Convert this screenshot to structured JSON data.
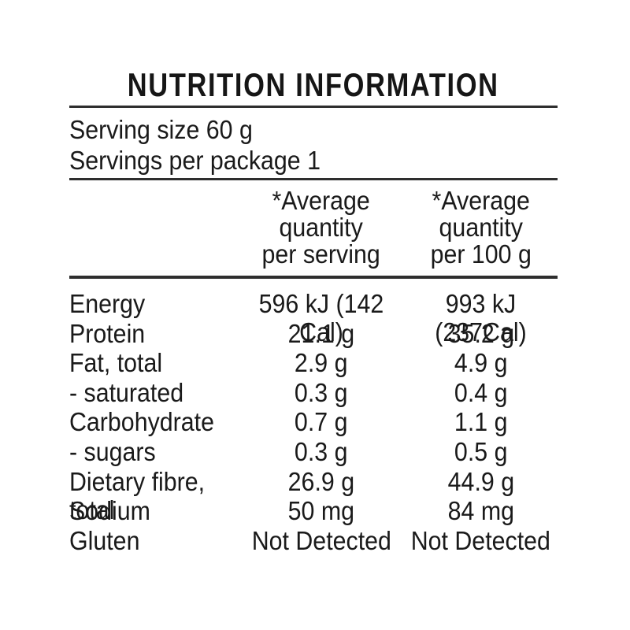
{
  "colors": {
    "background": "#ffffff",
    "text": "#1a1a1a",
    "rule": "#2e2e2e"
  },
  "title": "NUTRITION INFORMATION",
  "serving_info": {
    "serving_size": "Serving size 60 g",
    "servings_per_package": "Servings per package 1"
  },
  "columns": {
    "per_serving": "*Average\nquantity\nper serving",
    "per_100g": "*Average\nquantity\nper 100 g"
  },
  "table": {
    "rows": [
      {
        "label": "Energy",
        "per_serving": "596 kJ (142 Cal)",
        "per_100g": "993 kJ (237Cal)"
      },
      {
        "label": "Protein",
        "per_serving": "21.1 g",
        "per_100g": "35.2 g"
      },
      {
        "label": "Fat, total",
        "per_serving": "2.9 g",
        "per_100g": "4.9 g"
      },
      {
        "label": "- saturated",
        "per_serving": "0.3 g",
        "per_100g": "0.4 g"
      },
      {
        "label": "Carbohydrate",
        "per_serving": "0.7 g",
        "per_100g": "1.1 g"
      },
      {
        "label": "- sugars",
        "per_serving": "0.3 g",
        "per_100g": "0.5 g"
      },
      {
        "label": "Dietary fibre, total",
        "per_serving": "26.9 g",
        "per_100g": "44.9 g"
      },
      {
        "label": "Sodium",
        "per_serving": "50 mg",
        "per_100g": "84 mg"
      },
      {
        "label": "Gluten",
        "per_serving": "Not Detected",
        "per_100g": "Not Detected"
      }
    ]
  }
}
